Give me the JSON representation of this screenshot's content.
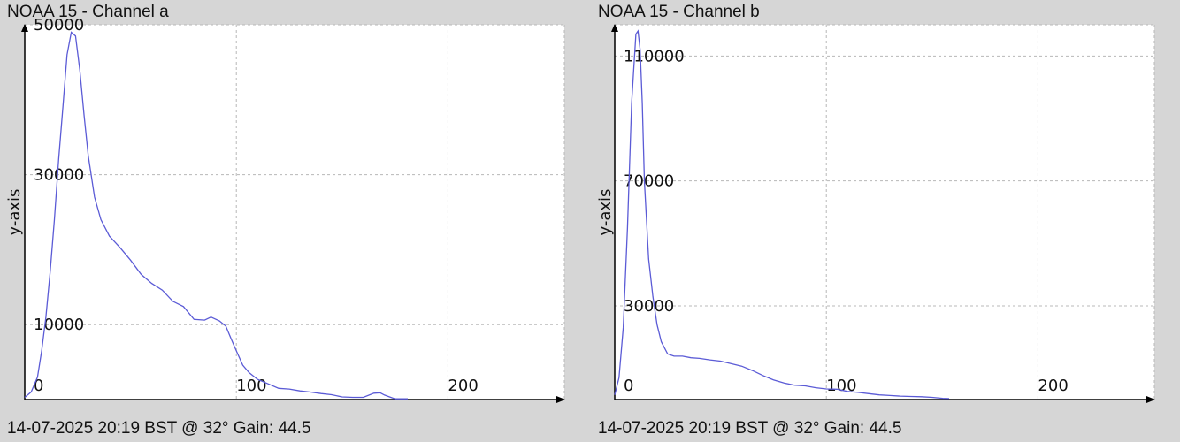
{
  "colors": {
    "background": "#d6d6d6",
    "plot_bg": "#ffffff",
    "line": "#5b5bd6",
    "grid": "#b8b8b8",
    "axis": "#000000"
  },
  "panels": [
    {
      "title": "NOAA 15 - Channel a",
      "footer": "14-07-2025 20:19 BST @ 32° Gain: 44.5"
    },
    {
      "title": "NOAA 15 - Channel b",
      "footer": "14-07-2025 20:19 BST @ 32° Gain: 44.5"
    }
  ],
  "chart_data": [
    {
      "type": "line",
      "title": "NOAA 15 - Channel a",
      "xlabel": "",
      "ylabel": "y-axis",
      "xlim": [
        0,
        255
      ],
      "ylim": [
        0,
        50000
      ],
      "xticks": [
        0,
        100,
        200
      ],
      "yticks": [
        10000,
        30000,
        50000
      ],
      "grid": true,
      "x": [
        0,
        3,
        6,
        8,
        10,
        12,
        14,
        16,
        18,
        20,
        22,
        24,
        26,
        28,
        30,
        33,
        36,
        40,
        45,
        50,
        55,
        60,
        65,
        70,
        75,
        80,
        85,
        88,
        92,
        95,
        98,
        100,
        103,
        106,
        110,
        115,
        120,
        125,
        130,
        135,
        140,
        145,
        150,
        155,
        160,
        165,
        168,
        170,
        173,
        175,
        178,
        181
      ],
      "y": [
        300,
        1000,
        3000,
        6500,
        11000,
        17000,
        24000,
        32000,
        39000,
        46000,
        49000,
        48500,
        44000,
        38000,
        32500,
        27000,
        24000,
        21800,
        20300,
        18600,
        16700,
        15500,
        14600,
        13100,
        12400,
        10700,
        10600,
        11000,
        10500,
        9800,
        7800,
        6500,
        4600,
        3600,
        2700,
        2100,
        1500,
        1400,
        1150,
        1000,
        800,
        650,
        350,
        300,
        300,
        850,
        900,
        600,
        300,
        100,
        100,
        100
      ]
    },
    {
      "type": "line",
      "title": "NOAA 15 - Channel b",
      "xlabel": "",
      "ylabel": "y-axis",
      "xlim": [
        0,
        255
      ],
      "ylim": [
        0,
        120000
      ],
      "xticks": [
        0,
        100,
        200
      ],
      "yticks": [
        30000,
        70000,
        110000
      ],
      "grid": true,
      "x": [
        0,
        2,
        4,
        6,
        8,
        10,
        11,
        12,
        13,
        14,
        16,
        18,
        20,
        22,
        25,
        28,
        32,
        36,
        40,
        45,
        50,
        55,
        60,
        65,
        70,
        75,
        80,
        85,
        90,
        95,
        100,
        105,
        110,
        115,
        120,
        125,
        130,
        135,
        140,
        145,
        150,
        155,
        158
      ],
      "y": [
        1500,
        7000,
        23000,
        55000,
        95000,
        117000,
        118000,
        112000,
        95000,
        70000,
        45000,
        33000,
        24000,
        18500,
        14600,
        13900,
        13900,
        13400,
        13200,
        12700,
        12300,
        11500,
        10700,
        9300,
        7700,
        6300,
        5300,
        4600,
        4400,
        3800,
        3400,
        3300,
        2600,
        2300,
        1900,
        1500,
        1300,
        1100,
        1000,
        900,
        700,
        400,
        300
      ]
    }
  ]
}
